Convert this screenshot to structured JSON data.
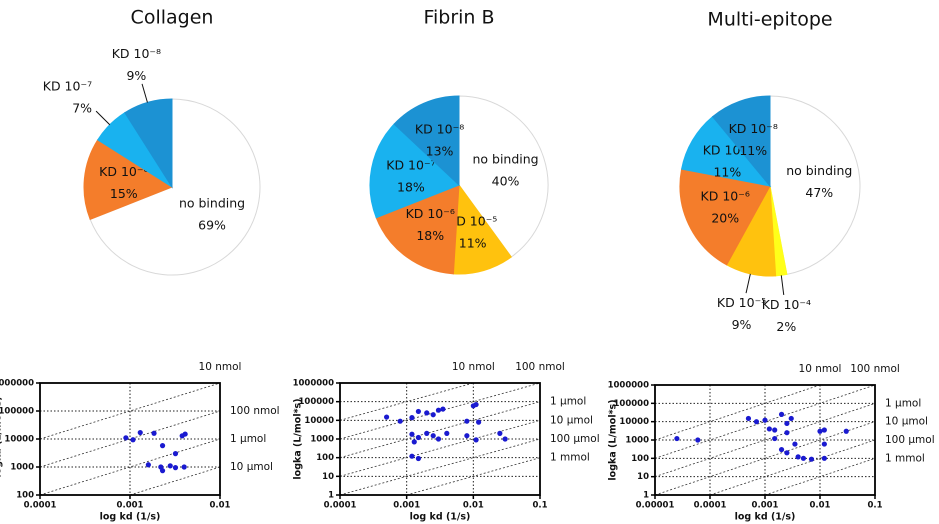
{
  "chart_data": [
    {
      "type": "pie",
      "title": "Collagen",
      "categories": [
        "no binding",
        "KD 10⁻⁶",
        "KD 10⁻⁷",
        "KD 10⁻⁸"
      ],
      "values": [
        69,
        15,
        7,
        9
      ],
      "value_labels": [
        "69%",
        "15%",
        "7%",
        "9%"
      ],
      "colors": [
        "#ffffff",
        "#f47d2b",
        "#19b2ef",
        "#1c92d3"
      ]
    },
    {
      "type": "pie",
      "title": "Fibrin B",
      "categories": [
        "no binding",
        "KD 10⁻⁵",
        "KD 10⁻⁶",
        "KD 10⁻⁷",
        "KD 10⁻⁸"
      ],
      "values": [
        40,
        11,
        18,
        18,
        13
      ],
      "value_labels": [
        "40%",
        "11%",
        "18%",
        "18%",
        "13%"
      ],
      "colors": [
        "#ffffff",
        "#ffc20e",
        "#f47d2b",
        "#19b2ef",
        "#1c92d3"
      ]
    },
    {
      "type": "pie",
      "title": "Multi-epitope",
      "categories": [
        "no binding",
        "KD 10⁻⁴",
        "KD 10⁻⁵",
        "KD 10⁻⁶",
        "KD 10⁻⁷",
        "KD 10⁻⁸"
      ],
      "values": [
        47,
        2,
        9,
        20,
        11,
        11
      ],
      "value_labels": [
        "47%",
        "2%",
        "9%",
        "20%",
        "11%",
        "11%"
      ],
      "colors": [
        "#ffffff",
        "#ffff1a",
        "#ffc20e",
        "#f47d2b",
        "#19b2ef",
        "#1c92d3"
      ]
    },
    {
      "type": "scatter",
      "x_label": "log kd (1/s)",
      "y_label": "logka (L/mol*s)",
      "log_x": true,
      "log_y": true,
      "grid": true,
      "color": "#1a1ad0",
      "xlim": [
        0.0001,
        0.01
      ],
      "xticks": [
        0.0001,
        0.001,
        0.01
      ],
      "ylim": [
        100,
        1000000
      ],
      "yticks": [
        100,
        1000,
        10000,
        100000,
        1000000
      ],
      "kd_lines": [
        {
          "label": "10 nmol",
          "value": 1e-08
        },
        {
          "label": "100 nmol",
          "value": 1e-07
        },
        {
          "label": "1 µmol",
          "value": 1e-06
        },
        {
          "label": "10 µmol",
          "value": 1e-05
        }
      ],
      "x": [
        0.0009,
        0.00108,
        0.0013,
        0.00185,
        0.0023,
        0.0038,
        0.0041,
        0.0032,
        0.0016,
        0.0022,
        0.0023,
        0.0028,
        0.0032,
        0.004
      ],
      "y": [
        11000,
        9400,
        17000,
        16000,
        5800,
        13000,
        15000,
        3000,
        1200,
        1000,
        740,
        1100,
        950,
        1000
      ]
    },
    {
      "type": "scatter",
      "x_label": "log kd (1/s)",
      "y_label": "logka (L/mol*s)",
      "log_x": true,
      "log_y": true,
      "grid": true,
      "color": "#1a1ad0",
      "xlim": [
        0.0001,
        0.1
      ],
      "xticks": [
        0.0001,
        0.001,
        0.01,
        0.1
      ],
      "ylim": [
        1,
        1000000
      ],
      "yticks": [
        1,
        10,
        100,
        1000,
        10000,
        100000,
        1000000
      ],
      "kd_lines": [
        {
          "label": "10 nmol",
          "value": 1e-08
        },
        {
          "label": "100 nmol",
          "value": 1e-07
        },
        {
          "label": "1 µmol",
          "value": 1e-06
        },
        {
          "label": "10 µmol",
          "value": 1e-05
        },
        {
          "label": "100 µmol",
          "value": 0.0001
        },
        {
          "label": "1 mmol",
          "value": 0.001
        }
      ],
      "x": [
        0.0005,
        0.0008,
        0.0012,
        0.0015,
        0.002,
        0.0025,
        0.003,
        0.0035,
        0.0012,
        0.0015,
        0.002,
        0.0025,
        0.003,
        0.004,
        0.0013,
        0.0012,
        0.0015,
        0.008,
        0.01,
        0.011,
        0.012,
        0.008,
        0.011,
        0.025,
        0.03
      ],
      "y": [
        15000,
        9000,
        14000,
        30000,
        25000,
        20000,
        35000,
        40000,
        1800,
        1200,
        2000,
        1500,
        1000,
        2000,
        700,
        120,
        90,
        9000,
        60000,
        70000,
        8000,
        1500,
        900,
        2000,
        1000
      ]
    },
    {
      "type": "scatter",
      "x_label": "log kd (1/s)",
      "y_label": "logka (L/mol*s)",
      "log_x": true,
      "log_y": true,
      "grid": true,
      "color": "#1a1ad0",
      "xlim": [
        1e-05,
        0.1
      ],
      "xticks": [
        {
          "value": 1e-05,
          "label": "0.00001"
        },
        0.0001,
        0.001,
        0.01,
        0.1
      ],
      "ylim": [
        1,
        1000000
      ],
      "yticks": [
        1,
        10,
        100,
        1000,
        10000,
        100000,
        1000000
      ],
      "kd_lines": [
        {
          "label": "10 nmol",
          "value": 1e-08
        },
        {
          "label": "100 nmol",
          "value": 1e-07
        },
        {
          "label": "1 µmol",
          "value": 1e-06
        },
        {
          "label": "10 µmol",
          "value": 1e-05
        },
        {
          "label": "100 µmol",
          "value": 0.0001
        },
        {
          "label": "1 mmol",
          "value": 0.001
        }
      ],
      "x": [
        2.5e-05,
        6e-05,
        0.0005,
        0.0007,
        0.001,
        0.0012,
        0.0015,
        0.002,
        0.0025,
        0.003,
        0.0025,
        0.0015,
        0.002,
        0.0025,
        0.0035,
        0.004,
        0.005,
        0.007,
        0.01,
        0.012,
        0.012,
        0.012,
        0.03
      ],
      "y": [
        1200,
        1000,
        15000,
        10000,
        12000,
        4000,
        3500,
        25000,
        8000,
        15000,
        2500,
        1200,
        300,
        200,
        600,
        120,
        100,
        90,
        3000,
        3500,
        600,
        100,
        3000
      ]
    }
  ]
}
